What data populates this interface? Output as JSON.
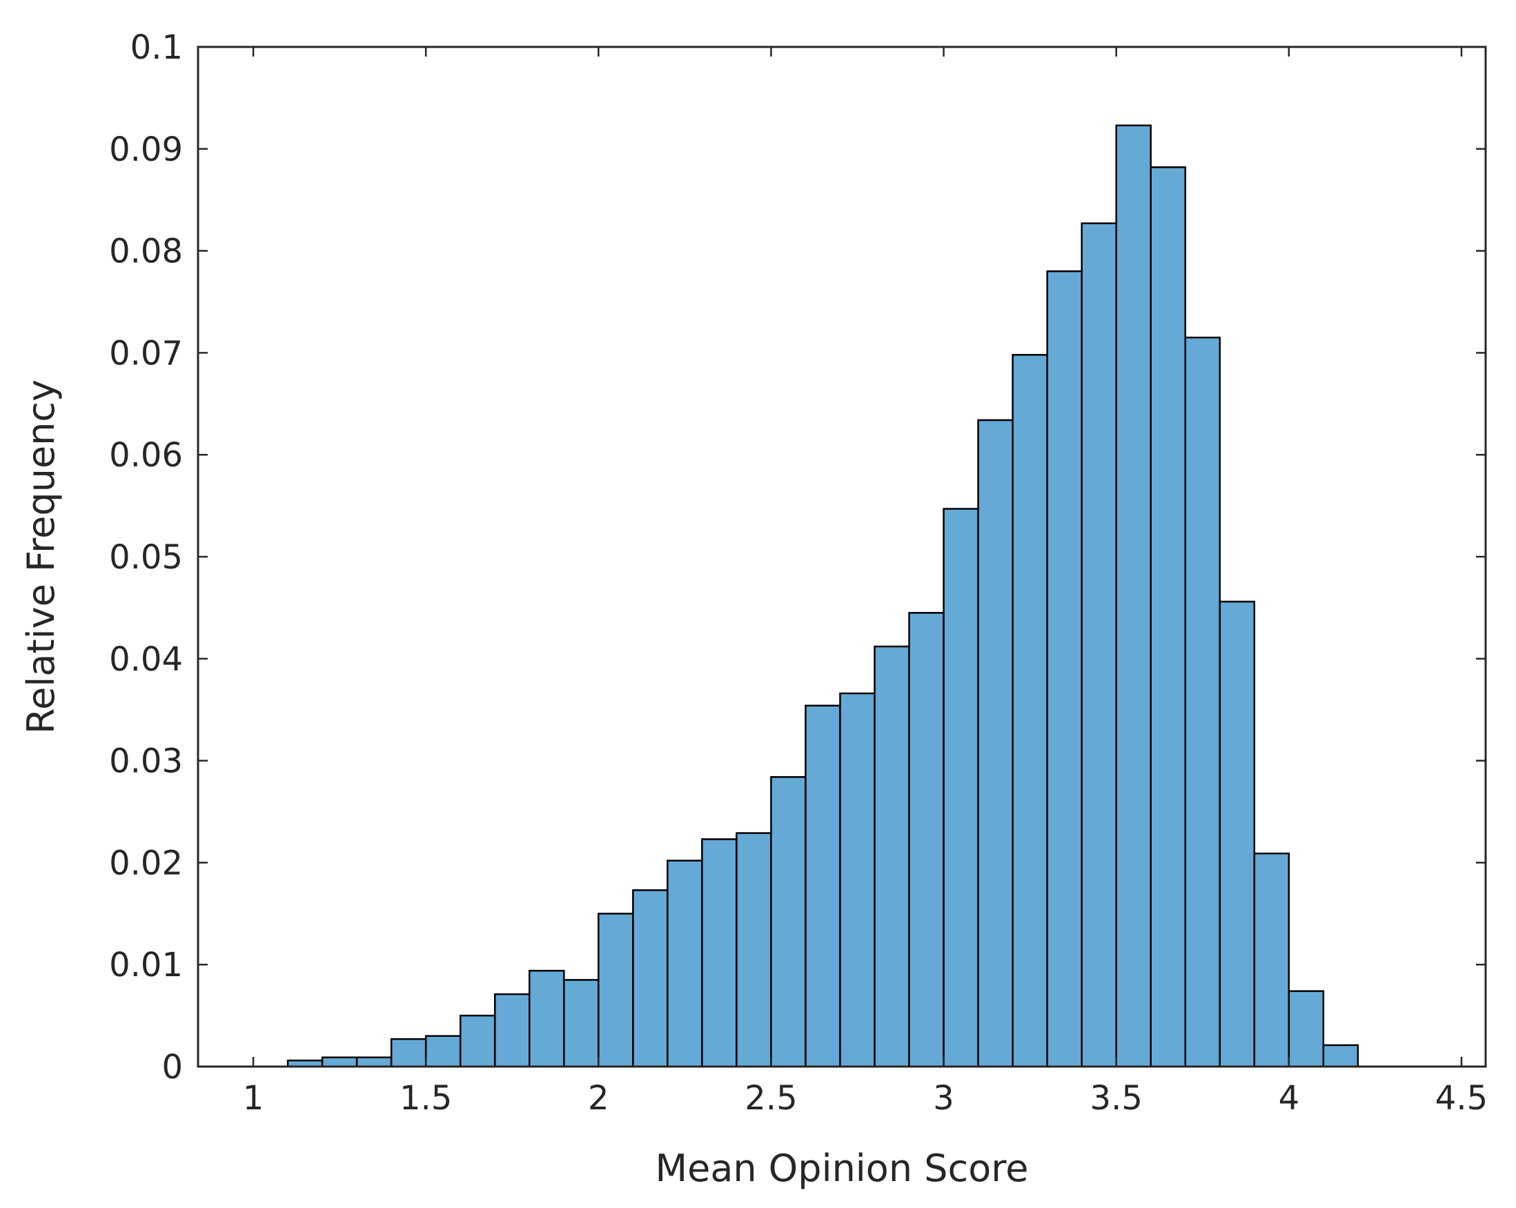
{
  "chart_data": {
    "type": "bar",
    "title": "",
    "xlabel": "Mean Opinion Score",
    "ylabel": "Relative Frequency",
    "xlim": [
      0.84,
      4.57
    ],
    "ylim": [
      0,
      0.1
    ],
    "bin_width": 0.1,
    "grid": false,
    "bar_color": "#65a9d6",
    "edge_color": "#000000",
    "xticks": [
      1,
      1.5,
      2,
      2.5,
      3,
      3.5,
      4,
      4.5
    ],
    "xtick_labels": [
      "1",
      "1.5",
      "2",
      "2.5",
      "3",
      "3.5",
      "4",
      "4.5"
    ],
    "yticks": [
      0,
      0.01,
      0.02,
      0.03,
      0.04,
      0.05,
      0.06,
      0.07,
      0.08,
      0.09,
      0.1
    ],
    "ytick_labels": [
      "0",
      "0.01",
      "0.02",
      "0.03",
      "0.04",
      "0.05",
      "0.06",
      "0.07",
      "0.08",
      "0.09",
      "0.1"
    ],
    "bins": [
      {
        "x0": 1.1,
        "x1": 1.2,
        "value": 0.0006
      },
      {
        "x0": 1.2,
        "x1": 1.3,
        "value": 0.0009
      },
      {
        "x0": 1.3,
        "x1": 1.4,
        "value": 0.0009
      },
      {
        "x0": 1.4,
        "x1": 1.5,
        "value": 0.0027
      },
      {
        "x0": 1.5,
        "x1": 1.6,
        "value": 0.003
      },
      {
        "x0": 1.6,
        "x1": 1.7,
        "value": 0.005
      },
      {
        "x0": 1.7,
        "x1": 1.8,
        "value": 0.0071
      },
      {
        "x0": 1.8,
        "x1": 1.9,
        "value": 0.0094
      },
      {
        "x0": 1.9,
        "x1": 2.0,
        "value": 0.0085
      },
      {
        "x0": 2.0,
        "x1": 2.1,
        "value": 0.015
      },
      {
        "x0": 2.1,
        "x1": 2.2,
        "value": 0.0173
      },
      {
        "x0": 2.2,
        "x1": 2.3,
        "value": 0.0202
      },
      {
        "x0": 2.3,
        "x1": 2.4,
        "value": 0.0223
      },
      {
        "x0": 2.4,
        "x1": 2.5,
        "value": 0.0229
      },
      {
        "x0": 2.5,
        "x1": 2.6,
        "value": 0.0284
      },
      {
        "x0": 2.6,
        "x1": 2.7,
        "value": 0.0354
      },
      {
        "x0": 2.7,
        "x1": 2.8,
        "value": 0.0366
      },
      {
        "x0": 2.8,
        "x1": 2.9,
        "value": 0.0412
      },
      {
        "x0": 2.9,
        "x1": 3.0,
        "value": 0.0445
      },
      {
        "x0": 3.0,
        "x1": 3.1,
        "value": 0.0547
      },
      {
        "x0": 3.1,
        "x1": 3.2,
        "value": 0.0634
      },
      {
        "x0": 3.2,
        "x1": 3.3,
        "value": 0.0698
      },
      {
        "x0": 3.3,
        "x1": 3.4,
        "value": 0.078
      },
      {
        "x0": 3.4,
        "x1": 3.5,
        "value": 0.0827
      },
      {
        "x0": 3.5,
        "x1": 3.6,
        "value": 0.0923
      },
      {
        "x0": 3.6,
        "x1": 3.7,
        "value": 0.0882
      },
      {
        "x0": 3.7,
        "x1": 3.8,
        "value": 0.0715
      },
      {
        "x0": 3.8,
        "x1": 3.9,
        "value": 0.0456
      },
      {
        "x0": 3.9,
        "x1": 4.0,
        "value": 0.0209
      },
      {
        "x0": 4.0,
        "x1": 4.1,
        "value": 0.0074
      },
      {
        "x0": 4.1,
        "x1": 4.2,
        "value": 0.0021
      }
    ]
  }
}
